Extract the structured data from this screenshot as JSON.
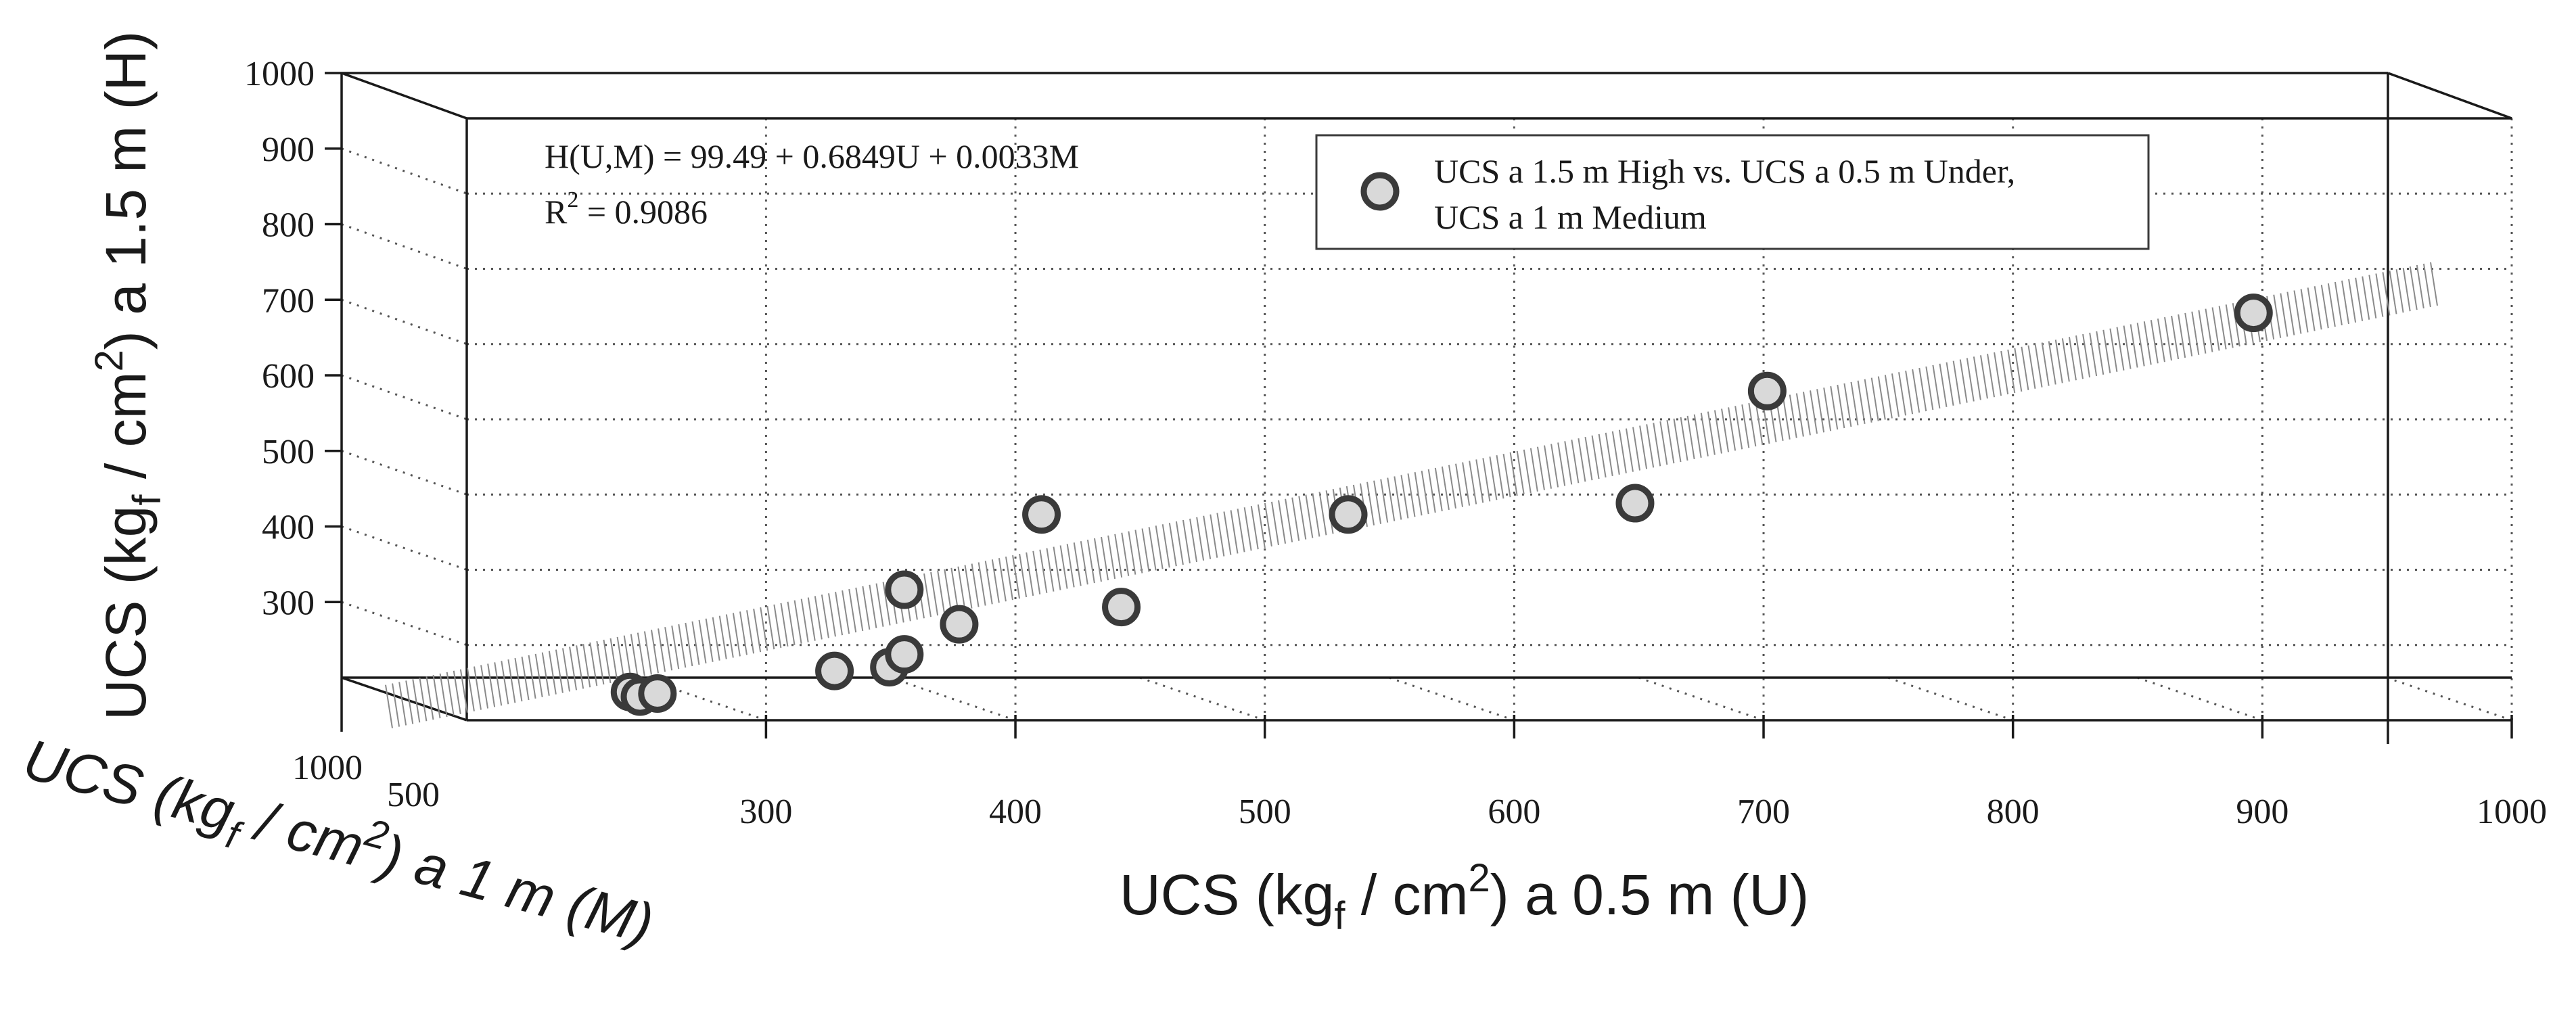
{
  "chart_data": {
    "type": "scatter",
    "subtype": "3d-scatter-with-fitted-plane",
    "series": [
      {
        "name": "UCS a 1.5 m High vs. UCS a 0.5 m Under, UCS a 1 m Medium",
        "points": [
          {
            "x": 278,
            "y": 242
          },
          {
            "x": 282,
            "y": 236
          },
          {
            "x": 289,
            "y": 240
          },
          {
            "x": 360,
            "y": 270
          },
          {
            "x": 382,
            "y": 275
          },
          {
            "x": 388,
            "y": 292
          },
          {
            "x": 388,
            "y": 378
          },
          {
            "x": 410,
            "y": 332
          },
          {
            "x": 443,
            "y": 478
          },
          {
            "x": 475,
            "y": 355
          },
          {
            "x": 566,
            "y": 478
          },
          {
            "x": 681,
            "y": 493
          },
          {
            "x": 734,
            "y": 642
          },
          {
            "x": 929,
            "y": 746
          }
        ],
        "marker_fill": "#d9d9d9",
        "marker_edge": "#3a3a3a"
      }
    ],
    "fit": {
      "equation": "H(U,M) = 99.49 + 0.6849U + 0.0033M",
      "r2_base": "R",
      "r2_sup": "2",
      "r2_value": " = 0.9086",
      "intercept": 99.49,
      "coef_u": 0.6849,
      "coef_m": 0.0033,
      "plane_color": "#8a8a8a"
    },
    "axes": {
      "x": {
        "label_pre": "UCS (kg",
        "label_sub": "f",
        "label_mid": " / cm",
        "label_sup": "2",
        "label_post": ") a 0.5 m (U)",
        "range": [
          180,
          1000
        ],
        "ticks": [
          "300",
          "400",
          "500",
          "600",
          "700",
          "800",
          "900",
          "1000"
        ]
      },
      "y": {
        "label_pre": "UCS (kg",
        "label_sub": "f",
        "label_mid": " / cm",
        "label_sup": "2",
        "label_post": ") a 1 m (M)",
        "ticks": [
          "1000",
          "500"
        ]
      },
      "z": {
        "label_pre": "UCS (kg",
        "label_sub": "f",
        "label_mid": " / cm",
        "label_sup": "2",
        "label_post": ") a 1.5 m (H)",
        "range": [
          200,
          1000
        ],
        "ticks": [
          "300",
          "400",
          "500",
          "600",
          "700",
          "800",
          "900",
          "1000"
        ]
      }
    },
    "legend": {
      "position": "top-right",
      "line1": "UCS a 1.5 m High vs. UCS a 0.5 m Under,",
      "line2": "UCS a 1 m Medium"
    },
    "grid": true
  }
}
